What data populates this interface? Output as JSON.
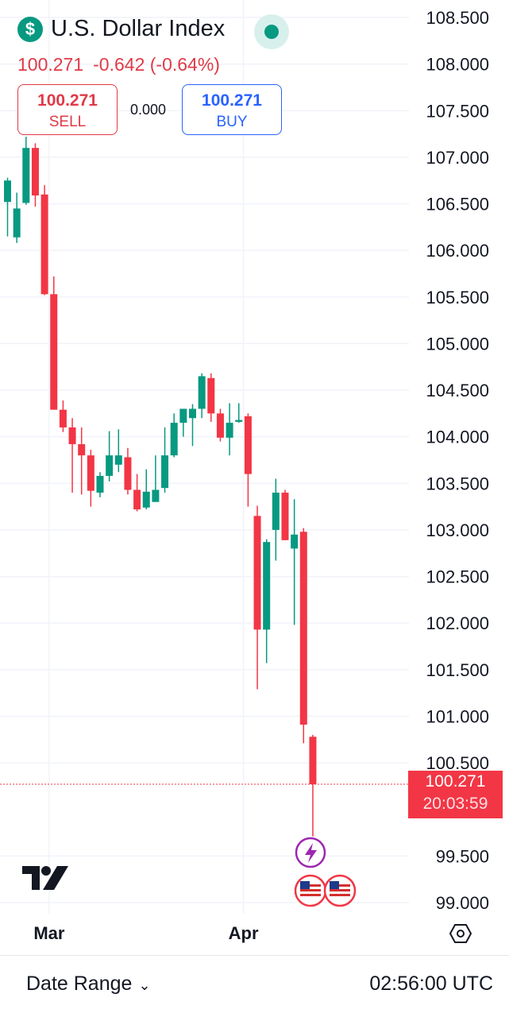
{
  "header": {
    "symbol_icon": "dollar-sign-icon",
    "title": "U.S. Dollar Index",
    "status_icon": "market-open-dot-icon",
    "last_price": "100.271",
    "change": "-0.642 (-0.64%)"
  },
  "trade": {
    "sell_price": "100.271",
    "sell_label": "SELL",
    "spread": "0.000",
    "buy_price": "100.271",
    "buy_label": "BUY"
  },
  "price_tag": {
    "price": "100.271",
    "countdown": "20:03:59"
  },
  "footer": {
    "date_range_label": "Date Range",
    "time": "02:56:00 UTC"
  },
  "colors": {
    "up": "#089981",
    "down": "#f23645",
    "grid": "#f0f3fa",
    "event": "#9c27b0"
  },
  "icons": {
    "event": "lightning-event-icon",
    "flag": "us-flag-icon",
    "settings": "hexagon-settings-icon",
    "logo": "tradingview-logo-icon"
  },
  "chart_data": {
    "type": "candlestick",
    "title": "U.S. Dollar Index",
    "y_tick_labels": [
      "108.500",
      "108.000",
      "107.500",
      "107.000",
      "106.500",
      "106.000",
      "105.500",
      "105.000",
      "104.500",
      "104.000",
      "103.500",
      "103.000",
      "102.500",
      "102.000",
      "101.500",
      "101.000",
      "100.500",
      "99.500",
      "99.000"
    ],
    "y_ticks": [
      108.5,
      108.0,
      107.5,
      107.0,
      106.5,
      106.0,
      105.5,
      105.0,
      104.5,
      104.0,
      103.5,
      103.0,
      102.5,
      102.0,
      101.5,
      101.0,
      100.5,
      99.5,
      99.0
    ],
    "ylim": [
      98.9,
      108.7
    ],
    "x_tick_labels": [
      "Mar",
      "Apr"
    ],
    "x_tick_positions": [
      4.5,
      25.5
    ],
    "last_price": 100.271,
    "candles": [
      {
        "o": 106.52,
        "h": 106.78,
        "l": 106.15,
        "c": 106.75
      },
      {
        "o": 106.14,
        "h": 106.62,
        "l": 106.08,
        "c": 106.45
      },
      {
        "o": 106.51,
        "h": 107.22,
        "l": 106.49,
        "c": 107.1
      },
      {
        "o": 107.1,
        "h": 107.15,
        "l": 106.47,
        "c": 106.59
      },
      {
        "o": 106.6,
        "h": 106.7,
        "l": 105.52,
        "c": 105.53
      },
      {
        "o": 105.53,
        "h": 105.72,
        "l": 104.29,
        "c": 104.29
      },
      {
        "o": 104.29,
        "h": 104.39,
        "l": 104.05,
        "c": 104.1
      },
      {
        "o": 104.1,
        "h": 104.2,
        "l": 103.4,
        "c": 103.92
      },
      {
        "o": 103.92,
        "h": 104.1,
        "l": 103.38,
        "c": 103.8
      },
      {
        "o": 103.8,
        "h": 103.86,
        "l": 103.25,
        "c": 103.42
      },
      {
        "o": 103.4,
        "h": 103.62,
        "l": 103.35,
        "c": 103.58
      },
      {
        "o": 103.58,
        "h": 104.06,
        "l": 103.52,
        "c": 103.8
      },
      {
        "o": 103.7,
        "h": 104.08,
        "l": 103.62,
        "c": 103.8
      },
      {
        "o": 103.78,
        "h": 103.88,
        "l": 103.38,
        "c": 103.43
      },
      {
        "o": 103.43,
        "h": 103.6,
        "l": 103.2,
        "c": 103.22
      },
      {
        "o": 103.24,
        "h": 103.65,
        "l": 103.22,
        "c": 103.41
      },
      {
        "o": 103.3,
        "h": 103.8,
        "l": 103.3,
        "c": 103.43
      },
      {
        "o": 103.45,
        "h": 104.1,
        "l": 103.4,
        "c": 103.8
      },
      {
        "o": 103.8,
        "h": 104.25,
        "l": 103.78,
        "c": 104.15
      },
      {
        "o": 104.15,
        "h": 104.3,
        "l": 104.0,
        "c": 104.3
      },
      {
        "o": 104.2,
        "h": 104.35,
        "l": 103.9,
        "c": 104.3
      },
      {
        "o": 104.3,
        "h": 104.68,
        "l": 104.2,
        "c": 104.65
      },
      {
        "o": 104.63,
        "h": 104.68,
        "l": 104.16,
        "c": 104.25
      },
      {
        "o": 104.25,
        "h": 104.3,
        "l": 103.95,
        "c": 103.99
      },
      {
        "o": 103.99,
        "h": 104.36,
        "l": 103.8,
        "c": 104.15
      },
      {
        "o": 104.16,
        "h": 104.36,
        "l": 104.15,
        "c": 104.18
      },
      {
        "o": 104.22,
        "h": 104.25,
        "l": 103.25,
        "c": 103.6
      },
      {
        "o": 103.15,
        "h": 103.26,
        "l": 101.29,
        "c": 101.93
      },
      {
        "o": 101.93,
        "h": 102.9,
        "l": 101.57,
        "c": 102.87
      },
      {
        "o": 103.0,
        "h": 103.55,
        "l": 102.67,
        "c": 103.4
      },
      {
        "o": 103.4,
        "h": 103.43,
        "l": 102.89,
        "c": 102.89
      },
      {
        "o": 102.8,
        "h": 103.33,
        "l": 101.98,
        "c": 102.95
      },
      {
        "o": 102.98,
        "h": 103.02,
        "l": 100.71,
        "c": 100.91
      },
      {
        "o": 100.78,
        "h": 100.8,
        "l": 99.71,
        "c": 100.27
      }
    ]
  }
}
